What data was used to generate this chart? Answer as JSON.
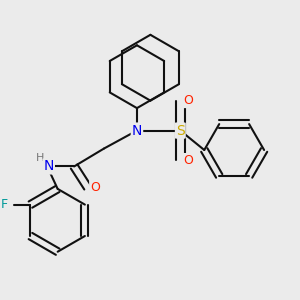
{
  "background_color": "#ebebeb",
  "atom_colors": {
    "N": "#0000ee",
    "O": "#ff2200",
    "S": "#ccaa00",
    "F": "#009999",
    "H": "#777777",
    "C": "#111111"
  },
  "bond_color": "#111111",
  "bond_width": 1.5
}
